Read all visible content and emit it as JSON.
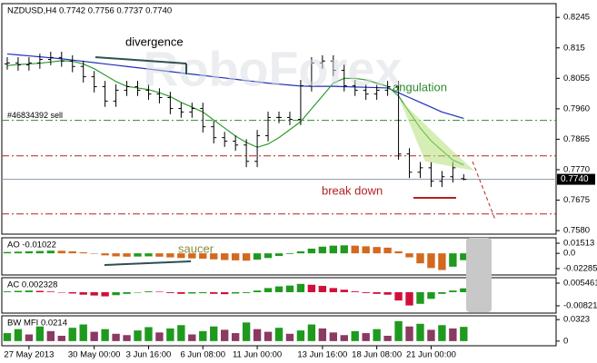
{
  "chart_data": [
    {
      "type": "ohlc",
      "title": "NZDUSD,H4  0.7742 0.7756 0.7737 0.7740",
      "watermark": "RoboForex",
      "xlim": [
        -0.5,
        50.5
      ],
      "xticks": [
        {
          "value": 2,
          "label": "27 May 2013"
        },
        {
          "value": 8,
          "label": "30 May 00:00"
        },
        {
          "value": 13,
          "label": "3 Jun 16:00"
        },
        {
          "value": 18,
          "label": "6 Jun 08:00"
        },
        {
          "value": 23,
          "label": "11 Jun 00:00"
        },
        {
          "value": 29,
          "label": "13 Jun 16:00"
        },
        {
          "value": 34,
          "label": "18 Jun 08:00"
        },
        {
          "value": 39,
          "label": "21 Jun 00:00"
        }
      ],
      "ylim": [
        0.7569,
        0.8288
      ],
      "yticks": [
        0.8245,
        0.815,
        0.8055,
        {
          "value": 0.796,
          "label": "0.7960"
        },
        0.7865,
        {
          "value": 0.777,
          "label": "0.7770"
        },
        0.7675,
        {
          "value": 0.758,
          "label": "0.7580"
        }
      ],
      "color": "#000000",
      "open": [
        0.81,
        0.8103,
        0.8097,
        0.8103,
        0.8114,
        0.812,
        0.8109,
        0.8092,
        0.806,
        0.8029,
        0.7984,
        0.8018,
        0.8029,
        0.8018,
        0.8006,
        0.7995,
        0.7961,
        0.795,
        0.7961,
        0.7904,
        0.787,
        0.7859,
        0.7847,
        0.7796,
        0.7876,
        0.7933,
        0.7933,
        0.7927,
        0.8032,
        0.8103,
        0.8109,
        0.808,
        0.8032,
        0.8018,
        0.8006,
        0.8018,
        0.8029,
        0.7819,
        0.7762,
        0.7776,
        0.7734,
        0.7748,
        0.7742
      ],
      "high": [
        0.8121,
        0.8121,
        0.8121,
        0.8132,
        0.8138,
        0.8138,
        0.8127,
        0.811,
        0.8078,
        0.8047,
        0.8036,
        0.8047,
        0.8047,
        0.8036,
        0.8024,
        0.8013,
        0.7979,
        0.7979,
        0.7979,
        0.7922,
        0.7888,
        0.7877,
        0.7865,
        0.7894,
        0.7951,
        0.7951,
        0.7951,
        0.805,
        0.8121,
        0.8127,
        0.8127,
        0.8098,
        0.805,
        0.8036,
        0.8036,
        0.8047,
        0.8047,
        0.7837,
        0.7794,
        0.7794,
        0.7766,
        0.7794,
        0.7756
      ],
      "low": [
        0.8082,
        0.8079,
        0.8079,
        0.8085,
        0.8096,
        0.8091,
        0.8074,
        0.8042,
        0.8011,
        0.7966,
        0.7966,
        0.8,
        0.8,
        0.7988,
        0.7977,
        0.7943,
        0.7932,
        0.7932,
        0.7886,
        0.7852,
        0.7841,
        0.7829,
        0.7778,
        0.7778,
        0.7858,
        0.7915,
        0.7909,
        0.7909,
        0.8014,
        0.8085,
        0.8062,
        0.8014,
        0.8,
        0.7988,
        0.7988,
        0.8,
        0.7801,
        0.7744,
        0.7744,
        0.7716,
        0.7716,
        0.773,
        0.7737
      ],
      "close": [
        0.8103,
        0.8097,
        0.8103,
        0.8114,
        0.812,
        0.8109,
        0.8092,
        0.806,
        0.8029,
        0.7984,
        0.8018,
        0.8029,
        0.8018,
        0.8006,
        0.7995,
        0.7961,
        0.795,
        0.7961,
        0.7904,
        0.787,
        0.7859,
        0.7847,
        0.7796,
        0.7876,
        0.7933,
        0.7933,
        0.7927,
        0.8032,
        0.8103,
        0.8109,
        0.808,
        0.8032,
        0.8018,
        0.8006,
        0.8018,
        0.8029,
        0.7819,
        0.7762,
        0.7776,
        0.7734,
        0.7748,
        0.7776,
        0.774
      ],
      "lines": [
        {
          "color": "#1c2fb8",
          "values": [
            0.8131,
            0.8128,
            0.8125,
            0.8122,
            0.8119,
            0.8116,
            0.8112,
            0.8108,
            0.8104,
            0.81,
            0.8096,
            0.8092,
            0.8088,
            0.8084,
            0.808,
            0.8076,
            0.8072,
            0.8068,
            0.8064,
            0.806,
            0.8056,
            0.8052,
            0.8048,
            0.8044,
            0.804,
            0.8037,
            0.8034,
            0.8031,
            0.803,
            0.803,
            0.803,
            0.8029,
            0.8028,
            0.8027,
            0.8026,
            0.8025,
            0.801,
            0.7995,
            0.798,
            0.7965,
            0.795,
            0.794,
            0.793
          ]
        },
        {
          "color": "#2e9b2e",
          "values": [
            0.8095,
            0.8098,
            0.81,
            0.8102,
            0.8106,
            0.811,
            0.8108,
            0.81,
            0.8085,
            0.8065,
            0.8045,
            0.803,
            0.8025,
            0.802,
            0.801,
            0.7998,
            0.798,
            0.7965,
            0.795,
            0.7925,
            0.79,
            0.7875,
            0.7855,
            0.784,
            0.785,
            0.787,
            0.7895,
            0.792,
            0.796,
            0.8,
            0.804,
            0.8055,
            0.8055,
            0.805,
            0.804,
            0.803,
            0.8,
            0.795,
            0.79,
            0.786,
            0.783,
            0.78,
            0.7785
          ]
        }
      ],
      "hlines": [
        {
          "value": 0.7924,
          "color": "#2e8b2e",
          "label": "#46834392 sell"
        },
        {
          "value": 0.7813,
          "color": "#b22222"
        },
        {
          "value": 0.7632,
          "color": "#b22222"
        }
      ],
      "last_price": {
        "value": 0.774,
        "label": "0.7740"
      },
      "annotations": [
        "divergence",
        "angulation",
        "break down"
      ]
    },
    {
      "type": "bar",
      "title": "AO -0.01022",
      "ylim": [
        -0.0324,
        0.0233
      ],
      "yticks": [
        0.01513,
        {
          "value": 0,
          "label": "0.0"
        },
        -0.02285
      ],
      "up_color": "#1f9a1f",
      "down_color": "#d2691e",
      "annotations": [
        "saucer"
      ],
      "values": [
        0.002,
        0.0025,
        0.003,
        0.0035,
        0.004,
        0.0038,
        0.003,
        0.0015,
        -0.0005,
        -0.003,
        -0.0045,
        -0.005,
        -0.0048,
        -0.0045,
        -0.005,
        -0.006,
        -0.007,
        -0.0075,
        -0.008,
        -0.009,
        -0.01,
        -0.0105,
        -0.011,
        -0.0095,
        -0.007,
        -0.004,
        -0.001,
        0.003,
        0.007,
        0.01,
        0.0115,
        0.012,
        0.0115,
        0.0105,
        0.0095,
        0.0085,
        0.003,
        -0.006,
        -0.015,
        -0.022,
        -0.025,
        -0.02,
        -0.01022
      ]
    },
    {
      "type": "bar",
      "title": "AC 0.002328",
      "ylim": [
        -0.01259,
        0.00874
      ],
      "yticks": [
        0.005461,
        -0.00821
      ],
      "up_color": "#1f9a1f",
      "down_color": "#d0103a",
      "values": [
        0.0005,
        0.0008,
        0.001,
        0.0008,
        0.0004,
        -0.0002,
        -0.0008,
        -0.0015,
        -0.002,
        -0.0025,
        -0.0018,
        -0.001,
        -0.0002,
        0.0005,
        0.0003,
        -0.0005,
        -0.001,
        -0.0008,
        -0.0006,
        -0.001,
        -0.0012,
        -0.0008,
        -0.0005,
        0.001,
        0.0025,
        0.0035,
        0.004,
        0.005,
        0.0045,
        0.0038,
        0.0025,
        0.0015,
        0.0005,
        -0.0005,
        -0.001,
        -0.0015,
        -0.005,
        -0.008,
        -0.007,
        -0.004,
        -0.001,
        0.001,
        0.002328
      ]
    },
    {
      "type": "bar",
      "title": "BW MFI 0.0214",
      "ylim": [
        -0.007,
        0.038
      ],
      "yticks": [
        0.0323,
        0
      ],
      "up_color": "#1f9a1f",
      "down_color": "#8b3a62",
      "values": [
        0.012,
        0.018,
        0.01,
        0.022,
        0.015,
        0.008,
        0.02,
        0.025,
        0.014,
        0.018,
        0.011,
        0.009,
        0.016,
        0.021,
        0.013,
        0.019,
        0.024,
        0.01,
        0.015,
        0.022,
        0.017,
        0.012,
        0.028,
        0.018,
        0.014,
        0.02,
        0.011,
        0.016,
        0.025,
        0.019,
        0.013,
        0.009,
        0.015,
        0.012,
        0.018,
        0.008,
        0.03,
        0.022,
        0.026,
        0.017,
        0.024,
        0.019,
        0.0214
      ]
    }
  ]
}
